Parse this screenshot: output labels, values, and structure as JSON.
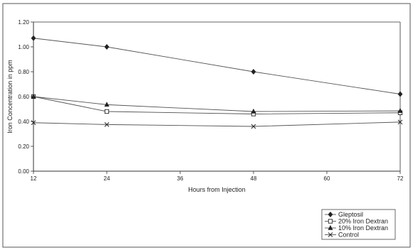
{
  "chart_data": {
    "type": "line",
    "title": "",
    "xlabel": "Hours from Injection",
    "ylabel": "Iron Concentration in ppm",
    "x": [
      12,
      24,
      48,
      72
    ],
    "x_ticks": [
      12,
      24,
      36,
      48,
      60,
      72
    ],
    "x_tick_labels": [
      "12",
      "24",
      "36",
      "48",
      "60",
      "72"
    ],
    "xlim": [
      12,
      72
    ],
    "ylim": [
      0,
      1.2
    ],
    "y_ticks": [
      0,
      0.2,
      0.4,
      0.6,
      0.8,
      1.0,
      1.2
    ],
    "y_tick_labels": [
      "0.00",
      "0.20",
      "0.40",
      "0.60",
      "0.80",
      "1.00",
      "1.20"
    ],
    "grid": false,
    "legend_position": "bottom-right",
    "series": [
      {
        "name": "Gleptosil",
        "marker": "diamond",
        "values": [
          1.07,
          1.0,
          0.8,
          0.62
        ]
      },
      {
        "name": "20% Iron Dextran",
        "marker": "square",
        "values": [
          0.6,
          0.48,
          0.46,
          0.47
        ]
      },
      {
        "name": "10% Iron Dextran",
        "marker": "triangle",
        "values": [
          0.6,
          0.535,
          0.48,
          0.485
        ]
      },
      {
        "name": "Control",
        "marker": "x",
        "values": [
          0.39,
          0.375,
          0.36,
          0.395
        ]
      }
    ],
    "line_color": "#555555",
    "axis_color": "#333333"
  }
}
